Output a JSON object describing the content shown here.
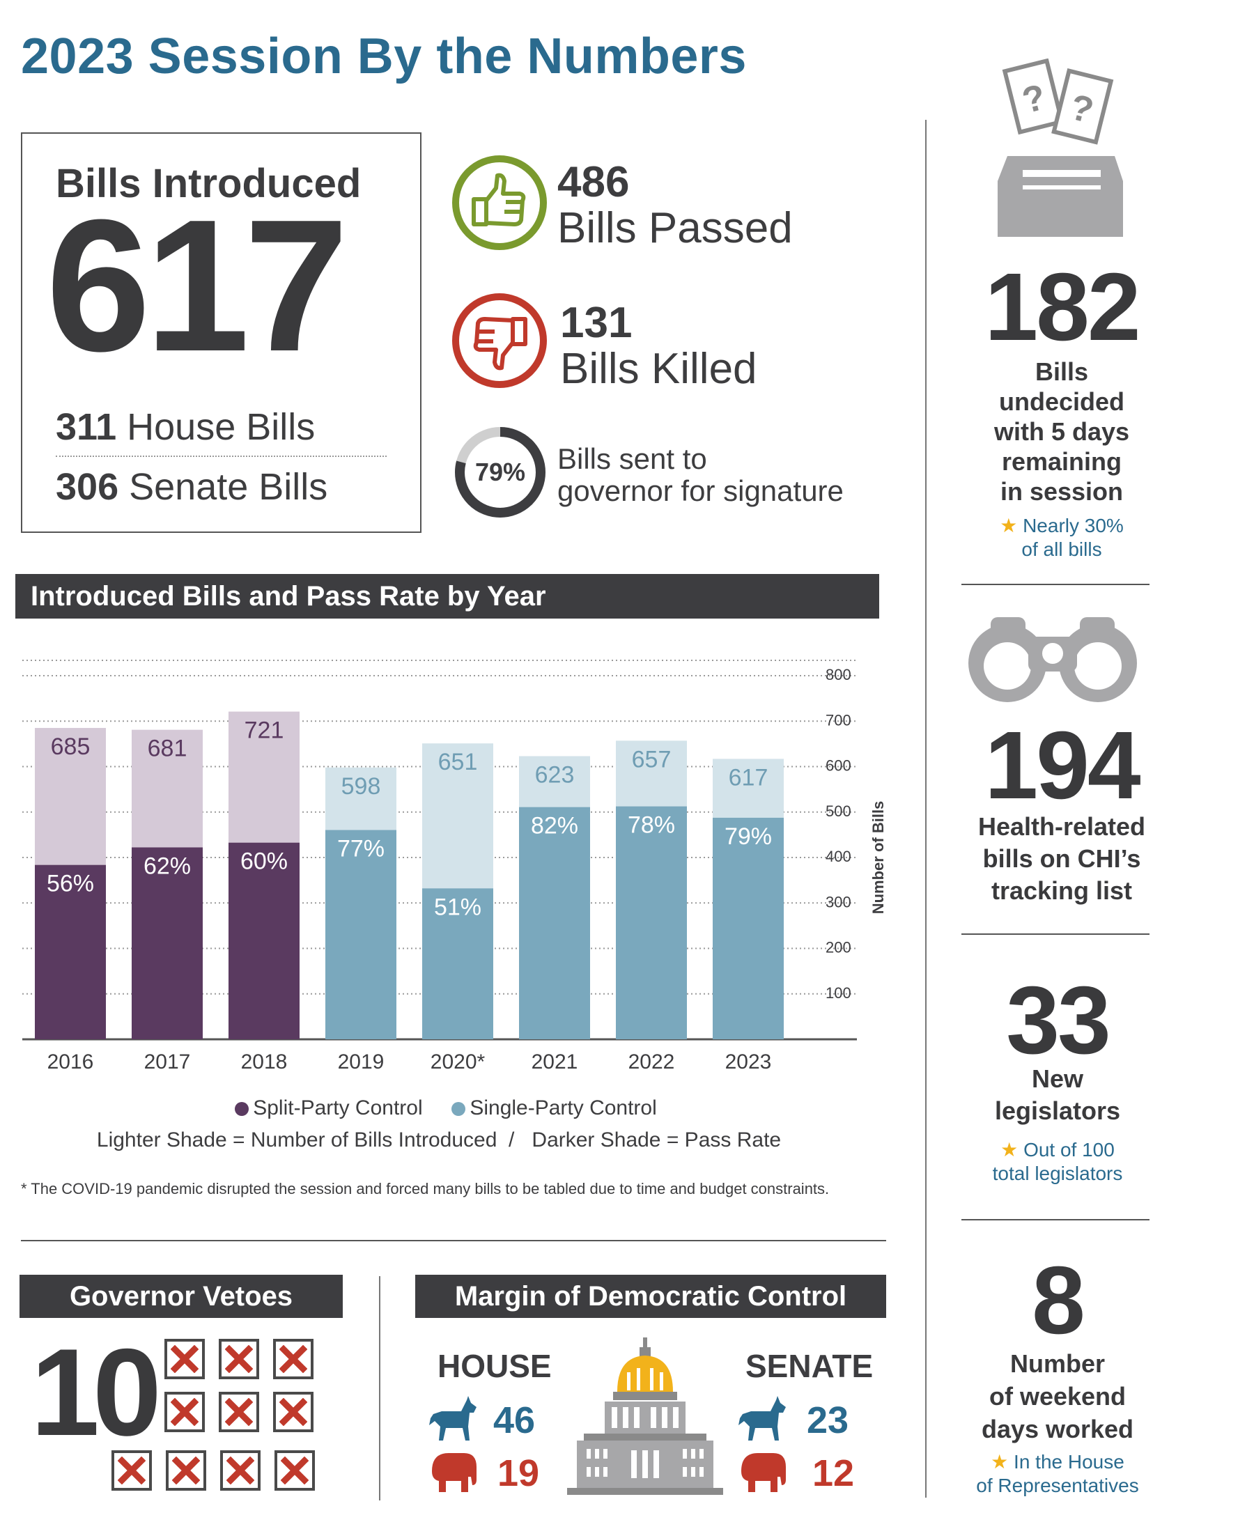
{
  "title": "2023 Session By the Numbers",
  "bills_introduced": {
    "label": "Bills Introduced",
    "total": "617",
    "house_count": "311",
    "house_label": "House Bills",
    "senate_count": "306",
    "senate_label": "Senate Bills"
  },
  "bills_passed": {
    "count": "486",
    "label": "Bills Passed"
  },
  "bills_killed": {
    "count": "131",
    "label": "Bills Killed"
  },
  "governor": {
    "percent_label": "79%",
    "percent_value": 79,
    "line1": "Bills sent to",
    "line2": "governor for signature"
  },
  "sidebar": {
    "undecided": {
      "number": "182",
      "lines": [
        "Bills",
        "undecided",
        "with 5 days",
        "remaining",
        "in session"
      ],
      "note1": "Nearly 30%",
      "note2": "of all bills"
    },
    "health": {
      "number": "194",
      "lines": [
        "Health-related",
        "bills on CHI’s",
        "tracking list"
      ]
    },
    "legislators": {
      "number": "33",
      "lines": [
        "New",
        "legislators"
      ],
      "note1": "Out of 100",
      "note2": "total legislators"
    },
    "weekend": {
      "number": "8",
      "lines": [
        "Number",
        "of weekend",
        "days worked"
      ],
      "note1": "In the House",
      "note2": "of Representatives"
    }
  },
  "chart_section_title": "Introduced Bills and Pass Rate by Year",
  "chart_data": {
    "type": "bar",
    "title": "Introduced Bills and Pass Rate by Year",
    "categories": [
      "2016",
      "2017",
      "2018",
      "2019",
      "2020*",
      "2021",
      "2022",
      "2023"
    ],
    "control": [
      "split",
      "split",
      "split",
      "single",
      "single",
      "single",
      "single",
      "single"
    ],
    "series": [
      {
        "name": "Number of Bills Introduced",
        "values": [
          685,
          681,
          721,
          598,
          651,
          623,
          657,
          617
        ]
      },
      {
        "name": "Pass Rate",
        "values": [
          56,
          62,
          60,
          77,
          51,
          82,
          78,
          79
        ]
      }
    ],
    "ylabel": "Number of Bills",
    "ylim": [
      0,
      800
    ],
    "yticks": [
      100,
      200,
      300,
      400,
      500,
      600,
      700,
      800
    ],
    "grid": true,
    "colors": {
      "split_light": "#d5c9d7",
      "split_dark": "#5a3a60",
      "single_light": "#d3e3ea",
      "single_dark": "#7aa8bd",
      "split_text": "#5a3a60",
      "single_text": "#6f9db3"
    }
  },
  "legend": {
    "split": "Split-Party Control",
    "single": "Single-Party Control",
    "shade_note": "Lighter Shade = Number of Bills Introduced  /   Darker Shade = Pass Rate"
  },
  "footnote": "* The COVID-19 pandemic disrupted the session and forced many bills to be tabled due to time and budget constraints.",
  "vetoes": {
    "title": "Governor Vetoes",
    "count": "10"
  },
  "margin": {
    "title": "Margin of Democratic Control",
    "house": {
      "label": "HOUSE",
      "dem": "46",
      "rep": "19"
    },
    "senate": {
      "label": "SENATE",
      "dem": "23",
      "rep": "12"
    }
  }
}
